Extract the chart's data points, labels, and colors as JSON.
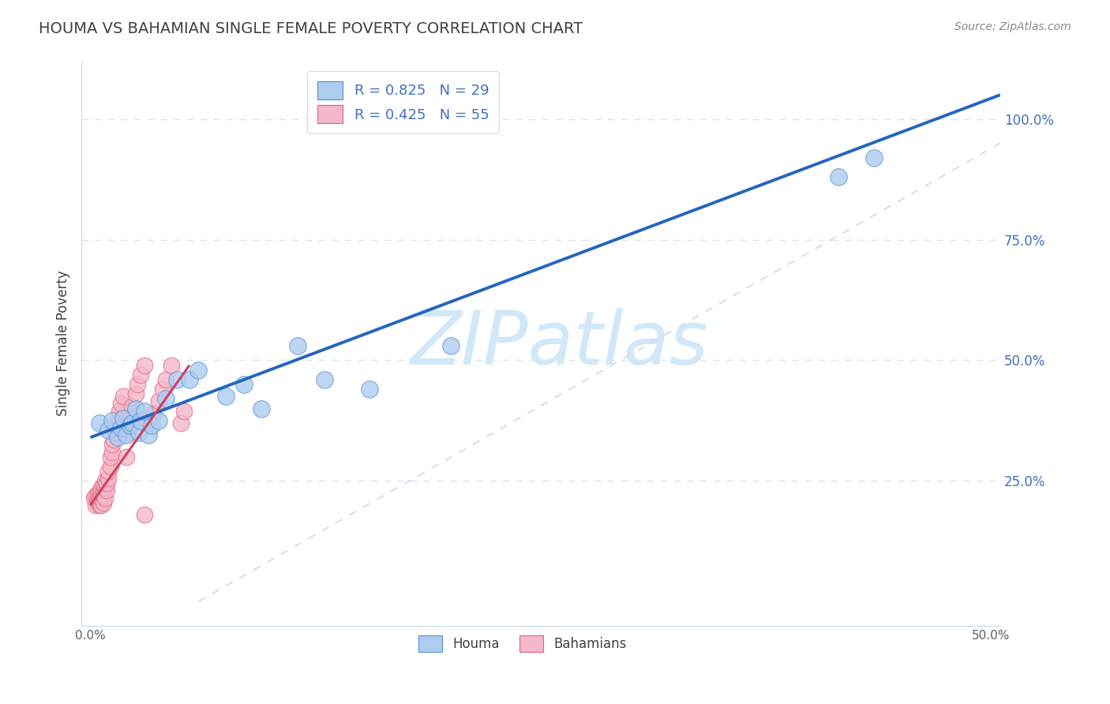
{
  "title": "HOUMA VS BAHAMIAN SINGLE FEMALE POVERTY CORRELATION CHART",
  "source": "Source: ZipAtlas.com",
  "xlabel": "",
  "ylabel": "Single Female Poverty",
  "xlim": [
    -0.005,
    0.505
  ],
  "ylim": [
    -0.05,
    1.12
  ],
  "xticks": [
    0.0,
    0.1,
    0.2,
    0.3,
    0.4,
    0.5
  ],
  "xticklabels": [
    "0.0%",
    "",
    "",
    "",
    "",
    "50.0%"
  ],
  "yticks": [
    0.25,
    0.5,
    0.75,
    1.0
  ],
  "yticklabels": [
    "25.0%",
    "50.0%",
    "75.0%",
    "100.0%"
  ],
  "legend_r1": "R = 0.825   N = 29",
  "legend_r2": "R = 0.425   N = 55",
  "houma_color": "#aeccf0",
  "bahamian_color": "#f5b8c8",
  "houma_edge_color": "#5090d0",
  "bahamian_edge_color": "#e06080",
  "houma_line_color": "#2565c0",
  "bahamian_line_color": "#d04060",
  "ref_line_color": "#d0d8e8",
  "watermark": "ZIPatlas",
  "watermark_color": "#d0e8f8",
  "houma_x": [
    0.005,
    0.01,
    0.012,
    0.015,
    0.017,
    0.018,
    0.02,
    0.022,
    0.023,
    0.025,
    0.027,
    0.028,
    0.03,
    0.032,
    0.034,
    0.038,
    0.042,
    0.048,
    0.055,
    0.06,
    0.075,
    0.085,
    0.095,
    0.115,
    0.13,
    0.155,
    0.2,
    0.415,
    0.435
  ],
  "houma_y": [
    0.37,
    0.355,
    0.375,
    0.34,
    0.36,
    0.38,
    0.345,
    0.365,
    0.37,
    0.4,
    0.35,
    0.375,
    0.395,
    0.345,
    0.365,
    0.375,
    0.42,
    0.46,
    0.46,
    0.48,
    0.425,
    0.45,
    0.4,
    0.53,
    0.46,
    0.44,
    0.53,
    0.88,
    0.92
  ],
  "bahamian_x": [
    0.002,
    0.003,
    0.003,
    0.004,
    0.004,
    0.004,
    0.005,
    0.005,
    0.005,
    0.005,
    0.005,
    0.005,
    0.006,
    0.006,
    0.006,
    0.006,
    0.007,
    0.007,
    0.007,
    0.007,
    0.008,
    0.008,
    0.008,
    0.009,
    0.009,
    0.01,
    0.01,
    0.011,
    0.011,
    0.012,
    0.012,
    0.013,
    0.014,
    0.015,
    0.015,
    0.016,
    0.017,
    0.018,
    0.02,
    0.021,
    0.022,
    0.023,
    0.025,
    0.026,
    0.028,
    0.03,
    0.033,
    0.035,
    0.038,
    0.04,
    0.042,
    0.045,
    0.05,
    0.052,
    0.03
  ],
  "bahamian_y": [
    0.215,
    0.2,
    0.22,
    0.205,
    0.215,
    0.225,
    0.205,
    0.2,
    0.215,
    0.225,
    0.21,
    0.215,
    0.2,
    0.215,
    0.225,
    0.235,
    0.205,
    0.22,
    0.23,
    0.24,
    0.215,
    0.235,
    0.25,
    0.23,
    0.245,
    0.255,
    0.27,
    0.28,
    0.3,
    0.31,
    0.325,
    0.335,
    0.35,
    0.36,
    0.38,
    0.395,
    0.41,
    0.425,
    0.3,
    0.35,
    0.38,
    0.405,
    0.43,
    0.45,
    0.47,
    0.49,
    0.365,
    0.39,
    0.415,
    0.44,
    0.46,
    0.49,
    0.37,
    0.395,
    0.18
  ],
  "houma_trend": [
    0.0,
    0.505
  ],
  "houma_trend_y": [
    0.34,
    1.05
  ],
  "bahamian_trend": [
    0.0,
    0.055
  ],
  "bahamian_trend_y": [
    0.2,
    0.49
  ],
  "ref_line_x": [
    0.06,
    0.505
  ],
  "ref_line_y": [
    0.0,
    0.95
  ],
  "grid_color": "#d8e4f0",
  "background_color": "#ffffff",
  "title_color": "#404040",
  "source_color": "#888888",
  "tick_color_x": "#606060",
  "tick_color_y": "#4070c0"
}
